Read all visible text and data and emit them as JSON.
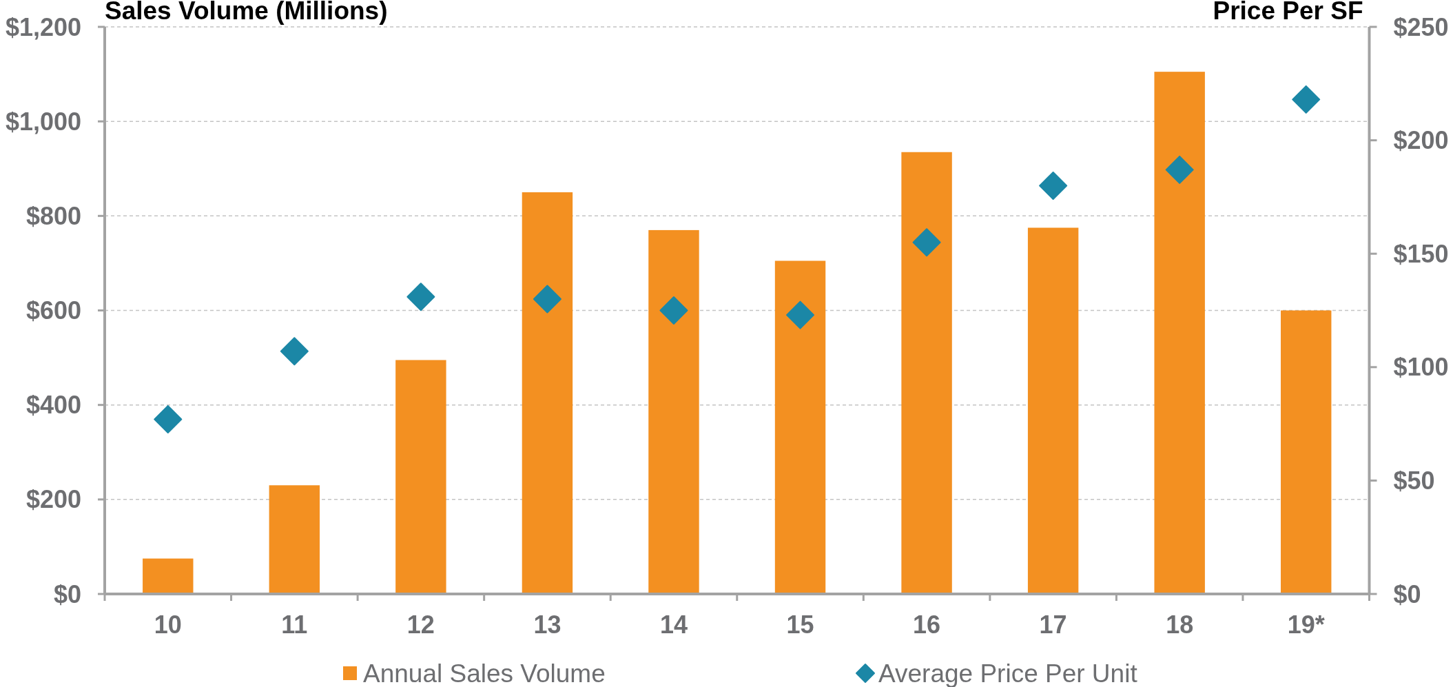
{
  "chart_data": {
    "type": "bar",
    "ylabel": "Sales Volume (Millions)",
    "y2label": "Price Per SF",
    "categories": [
      "10",
      "11",
      "12",
      "13",
      "14",
      "15",
      "16",
      "17",
      "18",
      "19*"
    ],
    "series": [
      {
        "name": "Annual Sales Volume",
        "color": "#f39021",
        "values": [
          75,
          230,
          495,
          850,
          770,
          705,
          935,
          775,
          1105,
          600
        ]
      },
      {
        "name": "Average Price Per Unit",
        "type": "scatter",
        "axis": "y2",
        "color": "#1b87a6",
        "values": [
          77,
          107,
          131,
          130,
          125,
          123,
          155,
          180,
          187,
          218
        ]
      }
    ],
    "ylim": [
      0,
      1200
    ],
    "yticks": [
      {
        "value": 0,
        "label": "$0"
      },
      {
        "value": 200,
        "label": "$200"
      },
      {
        "value": 400,
        "label": "$400"
      },
      {
        "value": 600,
        "label": "$600"
      },
      {
        "value": 800,
        "label": "$800"
      },
      {
        "value": 1000,
        "label": "$1,000"
      },
      {
        "value": 1200,
        "label": "$1,200"
      }
    ],
    "y2lim": [
      0,
      250
    ],
    "y2ticks": [
      {
        "value": 0,
        "label": "$0"
      },
      {
        "value": 50,
        "label": "$50"
      },
      {
        "value": 100,
        "label": "$100"
      },
      {
        "value": 150,
        "label": "$150"
      },
      {
        "value": 200,
        "label": "$200"
      },
      {
        "value": 250,
        "label": "$250"
      }
    ],
    "grid": "y",
    "legend": "bottom",
    "marker": "diamond"
  }
}
